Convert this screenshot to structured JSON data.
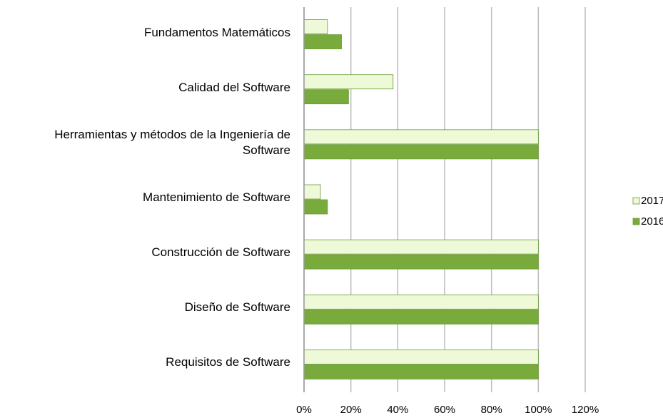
{
  "chart_data": {
    "type": "barh",
    "categories": [
      "Fundamentos Matemáticos",
      "Calidad del Software",
      "Herramientas y métodos de la Ingeniería de Software",
      "Mantenimiento de Software",
      "Construcción de Software",
      "Diseño de Software",
      "Requisitos de Software"
    ],
    "series": [
      {
        "name": "2017",
        "color": "#eef9d8",
        "values": [
          10,
          38,
          100,
          7,
          100,
          100,
          100
        ]
      },
      {
        "name": "2016",
        "color": "#79aa3c",
        "values": [
          16,
          19,
          100,
          10,
          100,
          100,
          100
        ]
      }
    ],
    "xlim": [
      0,
      120
    ],
    "xticks": [
      {
        "value": 0,
        "label": "0%"
      },
      {
        "value": 20,
        "label": "20%"
      },
      {
        "value": 40,
        "label": "40%"
      },
      {
        "value": 60,
        "label": "60%"
      },
      {
        "value": 80,
        "label": "80%"
      },
      {
        "value": 100,
        "label": "100%"
      },
      {
        "value": 120,
        "label": "120%"
      }
    ],
    "grid": true,
    "legend": "right"
  }
}
